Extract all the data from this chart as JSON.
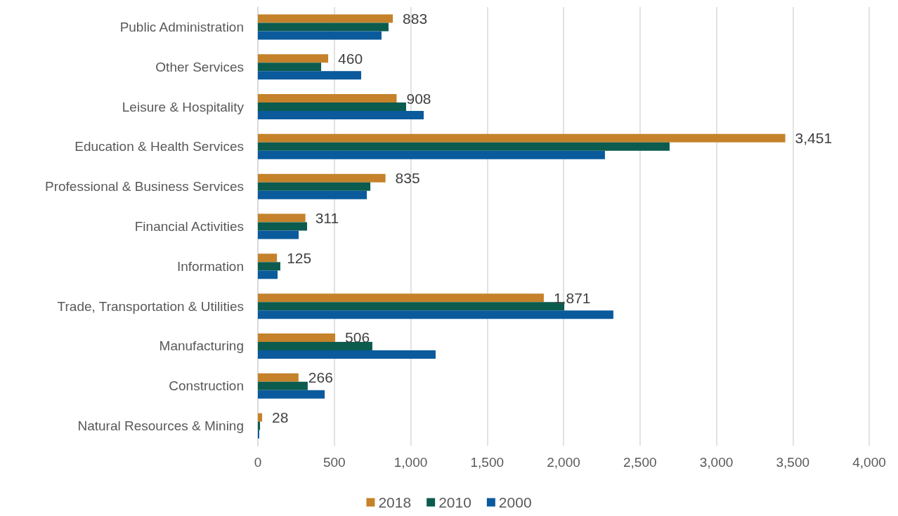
{
  "chart_data": {
    "type": "bar",
    "orientation": "horizontal",
    "categories": [
      "Public Administration",
      "Other Services",
      "Leisure & Hospitality",
      "Education & Health Services",
      "Professional & Business Services",
      "Financial Activities",
      "Information",
      "Trade, Transportation & Utilities",
      "Manufacturing",
      "Construction",
      "Natural Resources & Mining"
    ],
    "series": [
      {
        "name": "2018",
        "color": "#c5822b",
        "values": [
          883,
          460,
          908,
          3451,
          835,
          311,
          125,
          1871,
          506,
          266,
          28
        ],
        "value_labels": [
          "883",
          "460",
          "908",
          "3,451",
          "835",
          "311",
          "125",
          "1,871",
          "506",
          "266",
          "28"
        ]
      },
      {
        "name": "2010",
        "color": "#0b5c4f",
        "values": [
          855,
          414,
          970,
          2694,
          736,
          322,
          147,
          2005,
          749,
          326,
          14
        ]
      },
      {
        "name": "2000",
        "color": "#0a5a9c",
        "values": [
          809,
          676,
          1085,
          2271,
          713,
          267,
          129,
          2326,
          1163,
          437,
          9
        ]
      }
    ],
    "xlim": [
      0,
      4000
    ],
    "xticks": [
      {
        "value": 0,
        "label": "0"
      },
      {
        "value": 500,
        "label": "500"
      },
      {
        "value": 1000,
        "label": "1,000"
      },
      {
        "value": 1500,
        "label": "1,500"
      },
      {
        "value": 2000,
        "label": "2,000"
      },
      {
        "value": 2500,
        "label": "2,500"
      },
      {
        "value": 3000,
        "label": "3,000"
      },
      {
        "value": 3500,
        "label": "3,500"
      },
      {
        "value": 4000,
        "label": "4,000"
      }
    ],
    "grid": "x",
    "legend": "bottom"
  }
}
